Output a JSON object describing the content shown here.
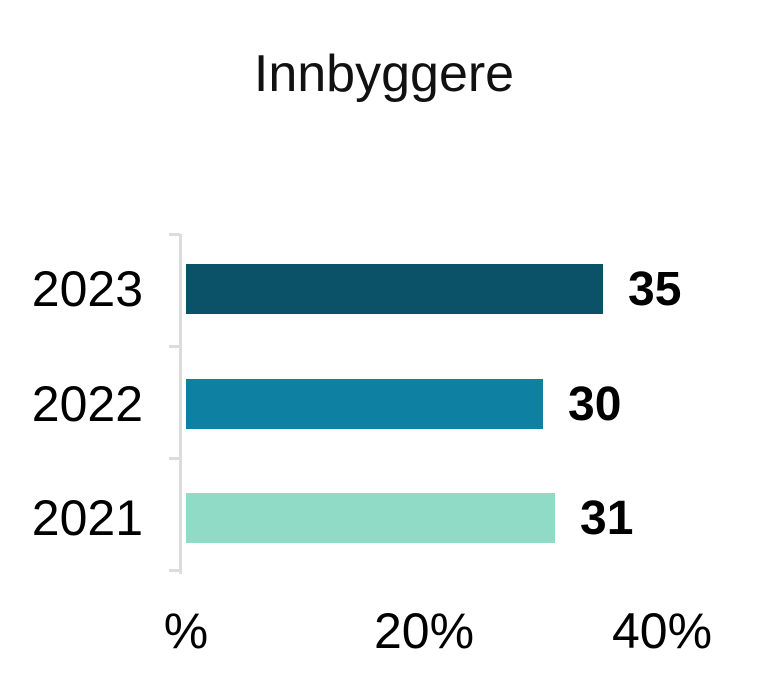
{
  "page": {
    "background": "#ffffff",
    "text_color": "#000000"
  },
  "chart_data": {
    "type": "bar",
    "orientation": "horizontal",
    "title": "Innbyggere",
    "categories": [
      "2023",
      "2022",
      "2021"
    ],
    "values": [
      35,
      30,
      31
    ],
    "series": [
      {
        "name": "Innbyggere",
        "values": [
          35,
          30,
          31
        ]
      }
    ],
    "bar_colors": [
      "#0b5168",
      "#0e81a3",
      "#90dbc5"
    ],
    "xlim": [
      0,
      40
    ],
    "x_tick_labels": [
      "%",
      "20%",
      "40%"
    ],
    "x_tick_values": [
      0,
      20,
      40
    ],
    "xlabel": "",
    "ylabel": "",
    "axis_color": "#dcdcdc",
    "grid": "off",
    "legend": "none",
    "value_labels_shown": true
  }
}
